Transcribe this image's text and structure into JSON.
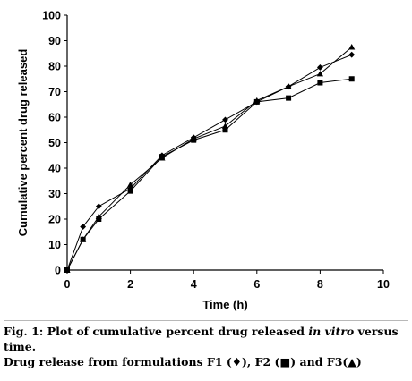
{
  "chart_data": {
    "type": "line",
    "xlabel": "Time (h)",
    "ylabel": "Cumulative percent drug released",
    "xlim": [
      0,
      10
    ],
    "ylim": [
      0,
      100
    ],
    "xticks": [
      0,
      2,
      4,
      6,
      8,
      10
    ],
    "yticks": [
      0,
      10,
      20,
      30,
      40,
      50,
      60,
      70,
      80,
      90,
      100
    ],
    "grid": false,
    "legend": "none",
    "series": [
      {
        "marker": "diamond",
        "x": [
          0,
          0.5,
          1,
          2,
          3,
          4,
          5,
          6,
          7,
          8,
          9
        ],
        "y": [
          0,
          17,
          25,
          32,
          45,
          52,
          59,
          66,
          72,
          79.5,
          84.5
        ]
      },
      {
        "marker": "square",
        "x": [
          0,
          0.5,
          1,
          2,
          3,
          4,
          5,
          6,
          7,
          8,
          9
        ],
        "y": [
          0,
          12,
          20,
          31,
          44.5,
          51,
          55,
          66,
          67.5,
          73.5,
          75
        ]
      },
      {
        "marker": "triangle",
        "x": [
          0,
          0.5,
          1,
          2,
          3,
          4,
          5,
          6,
          7,
          8,
          9
        ],
        "y": [
          0,
          12,
          21,
          33.5,
          44,
          51.5,
          56.5,
          66.5,
          72,
          77,
          87.5
        ]
      }
    ]
  },
  "caption": {
    "line1_a": "Fig. 1: Plot of cumulative percent drug released ",
    "line1_em": "in vitro",
    "line1_b": " versus",
    "line2": "time.",
    "line3": "Drug release from formulations F1 (♦), F2 (■) and F3(▲)"
  }
}
